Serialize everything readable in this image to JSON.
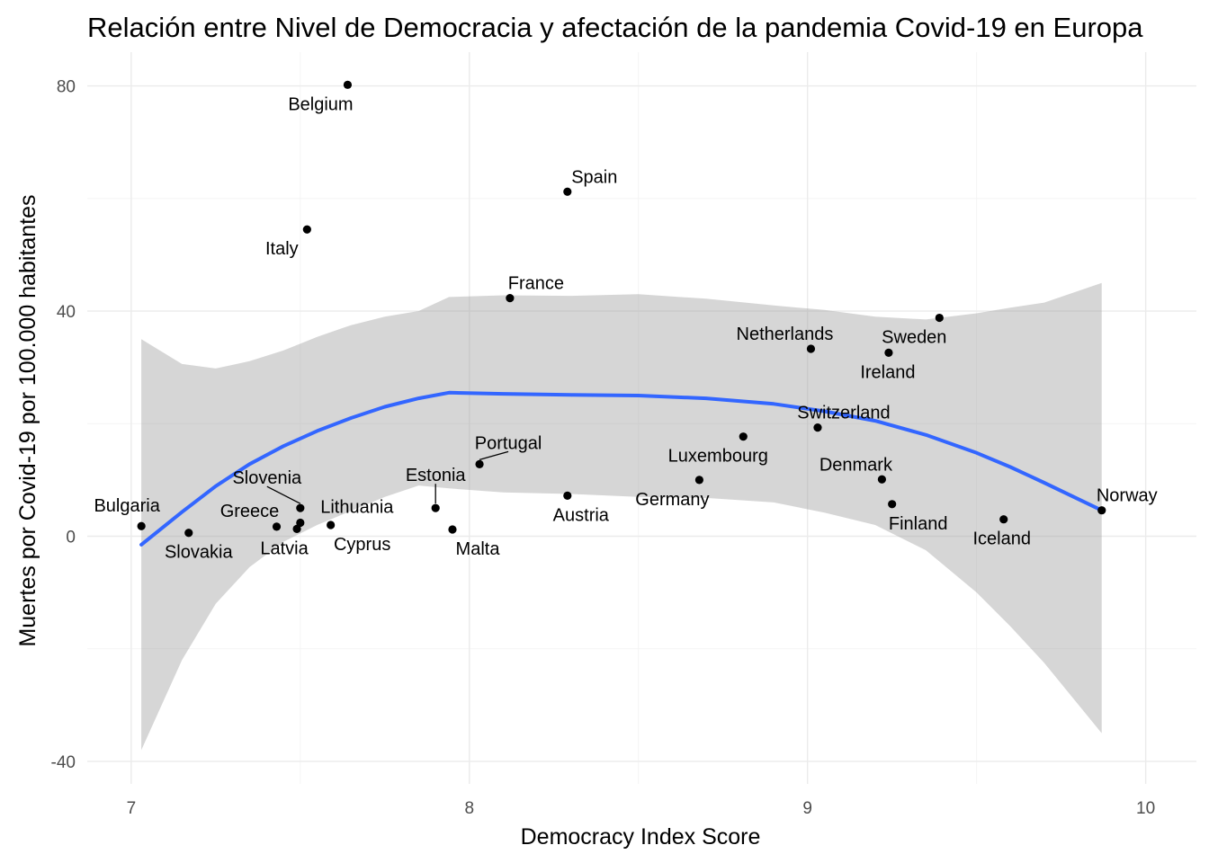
{
  "chart_data": {
    "type": "scatter",
    "title": "Relación entre Nivel de Democracia y afectación de la pandemia Covid-19 en Europa",
    "xlabel": "Democracy Index Score",
    "ylabel": "Muertes por Covid-19 por 100.000 habitantes",
    "xlim": [
      6.87,
      10.15
    ],
    "ylim": [
      -44,
      86
    ],
    "x_ticks": [
      7,
      8,
      9,
      10
    ],
    "x_tick_labels": [
      "7",
      "8",
      "9",
      "10"
    ],
    "y_ticks": [
      -40,
      0,
      40,
      80
    ],
    "y_tick_labels": [
      "-40",
      "0",
      "40",
      "80"
    ],
    "x_minor": [
      7.5,
      8.5,
      9.5
    ],
    "y_minor": [
      -20,
      20,
      60
    ],
    "grid": true,
    "colors": {
      "points": "#000000",
      "smooth": "#3366ff",
      "ribbon": "#999999",
      "label_text": "#000000"
    },
    "points": [
      {
        "country": "Bulgaria",
        "x": 7.03,
        "y": 1.8
      },
      {
        "country": "Slovakia",
        "x": 7.17,
        "y": 0.6
      },
      {
        "country": "Greece",
        "x": 7.43,
        "y": 1.7
      },
      {
        "country": "Latvia",
        "x": 7.49,
        "y": 1.3
      },
      {
        "country": "Slovenia",
        "x": 7.5,
        "y": 5.0
      },
      {
        "country": "Lithuania",
        "x": 7.5,
        "y": 2.4
      },
      {
        "country": "Italy",
        "x": 7.52,
        "y": 54.5
      },
      {
        "country": "Cyprus",
        "x": 7.59,
        "y": 2.0
      },
      {
        "country": "Belgium",
        "x": 7.64,
        "y": 80.2
      },
      {
        "country": "Estonia",
        "x": 7.9,
        "y": 5.0
      },
      {
        "country": "Malta",
        "x": 7.95,
        "y": 1.2
      },
      {
        "country": "Portugal",
        "x": 8.03,
        "y": 12.8
      },
      {
        "country": "France",
        "x": 8.12,
        "y": 42.3
      },
      {
        "country": "Spain",
        "x": 8.29,
        "y": 61.2
      },
      {
        "country": "Austria",
        "x": 8.29,
        "y": 7.2
      },
      {
        "country": "Germany",
        "x": 8.68,
        "y": 10.0
      },
      {
        "country": "Luxembourg",
        "x": 8.81,
        "y": 17.7
      },
      {
        "country": "Netherlands",
        "x": 9.01,
        "y": 33.3
      },
      {
        "country": "Switzerland",
        "x": 9.03,
        "y": 19.3
      },
      {
        "country": "Denmark",
        "x": 9.22,
        "y": 10.1
      },
      {
        "country": "Ireland",
        "x": 9.24,
        "y": 32.6
      },
      {
        "country": "Finland",
        "x": 9.25,
        "y": 5.7
      },
      {
        "country": "Sweden",
        "x": 9.39,
        "y": 38.8
      },
      {
        "country": "Iceland",
        "x": 9.58,
        "y": 3.0
      },
      {
        "country": "Norway",
        "x": 9.87,
        "y": 4.6
      }
    ],
    "smooth": {
      "x": [
        7.03,
        7.15,
        7.25,
        7.35,
        7.45,
        7.55,
        7.65,
        7.75,
        7.85,
        7.94,
        8.1,
        8.3,
        8.5,
        8.7,
        8.9,
        9.05,
        9.2,
        9.35,
        9.5,
        9.6,
        9.7,
        9.87
      ],
      "y": [
        -1.5,
        4.3,
        8.9,
        12.8,
        16.0,
        18.7,
        21.0,
        23.0,
        24.5,
        25.5,
        25.3,
        25.1,
        25.0,
        24.5,
        23.5,
        22.2,
        20.5,
        18.0,
        14.8,
        12.3,
        9.5,
        4.6
      ],
      "ymin": [
        -38.0,
        -22.0,
        -12.0,
        -5.5,
        -1.0,
        2.0,
        4.5,
        7.0,
        9.0,
        8.5,
        7.8,
        7.5,
        7.0,
        6.8,
        6.0,
        4.2,
        2.0,
        -2.5,
        -10.0,
        -16.0,
        -22.5,
        -35.0
      ],
      "ymax": [
        35.0,
        30.6,
        29.8,
        31.1,
        33.0,
        35.4,
        37.5,
        39.0,
        40.0,
        42.5,
        42.8,
        42.7,
        43.0,
        42.2,
        41.0,
        40.2,
        39.0,
        38.5,
        39.6,
        40.6,
        41.5,
        45.0
      ]
    },
    "labels": [
      {
        "country": "Bulgaria",
        "dx": -16,
        "dy": -23,
        "leader": false
      },
      {
        "country": "Slovakia",
        "dx": 11,
        "dy": 21,
        "leader": false
      },
      {
        "country": "Greece",
        "dx": -30,
        "dy": -18,
        "leader": false
      },
      {
        "country": "Latvia",
        "dx": -14,
        "dy": 21,
        "leader": false
      },
      {
        "country": "Slovenia",
        "dx": -37,
        "dy": -34,
        "leader": true
      },
      {
        "country": "Lithuania",
        "dx": 63,
        "dy": -18,
        "leader": false
      },
      {
        "country": "Italy",
        "dx": -28,
        "dy": 21,
        "leader": false
      },
      {
        "country": "Cyprus",
        "dx": 35,
        "dy": 21,
        "leader": false
      },
      {
        "country": "Belgium",
        "dx": -30,
        "dy": 21,
        "leader": false
      },
      {
        "country": "Estonia",
        "dx": 0,
        "dy": -37,
        "leader": true
      },
      {
        "country": "Malta",
        "dx": 28,
        "dy": 21,
        "leader": false
      },
      {
        "country": "Portugal",
        "dx": 32,
        "dy": -24,
        "leader": true
      },
      {
        "country": "France",
        "dx": 29,
        "dy": -17,
        "leader": false
      },
      {
        "country": "Spain",
        "dx": 30,
        "dy": -17,
        "leader": false
      },
      {
        "country": "Austria",
        "dx": 15,
        "dy": 21,
        "leader": false
      },
      {
        "country": "Germany",
        "dx": -30,
        "dy": 21,
        "leader": false
      },
      {
        "country": "Luxembourg",
        "dx": -28,
        "dy": 21,
        "leader": false
      },
      {
        "country": "Netherlands",
        "dx": -29,
        "dy": -17,
        "leader": false
      },
      {
        "country": "Switzerland",
        "dx": 29,
        "dy": -17,
        "leader": false
      },
      {
        "country": "Denmark",
        "dx": -29,
        "dy": -17,
        "leader": false
      },
      {
        "country": "Ireland",
        "dx": -1,
        "dy": 21,
        "leader": false
      },
      {
        "country": "Finland",
        "dx": 29,
        "dy": 21,
        "leader": false
      },
      {
        "country": "Sweden",
        "dx": -28,
        "dy": 21,
        "leader": false
      },
      {
        "country": "Iceland",
        "dx": -2,
        "dy": 21,
        "leader": false
      },
      {
        "country": "Norway",
        "dx": 28,
        "dy": -17,
        "leader": false
      }
    ]
  }
}
